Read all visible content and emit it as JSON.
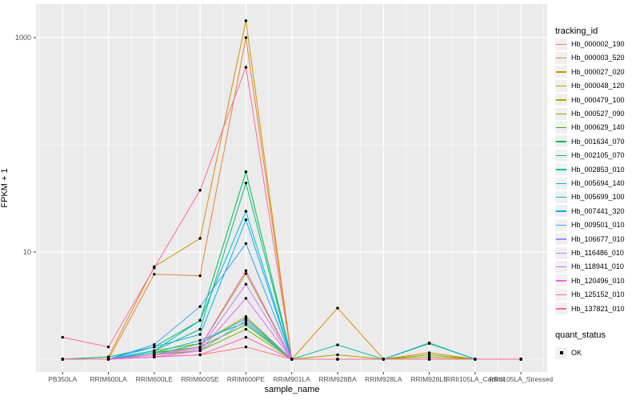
{
  "figure": {
    "background": "#FFFFFF",
    "panel_background": "#EBEBEB",
    "grid_color": "#FFFFFF",
    "tick_color": "#333333",
    "tick_label_color": "#4D4D4D",
    "axis_title_color": "#000000",
    "point_color": "#000000"
  },
  "chart_data": {
    "type": "line",
    "title": "",
    "xlabel": "sample_name",
    "ylabel": "FPKM + 1",
    "y_scale": "log10",
    "grid": true,
    "legend_position": "right",
    "y_ticks": [
      {
        "label": "1000",
        "value": 1000
      },
      {
        "label": "10",
        "value": 10
      }
    ],
    "y_minor_values": [
      100,
      1
    ],
    "categories": [
      "PB350LA",
      "RRIM600LA",
      "RRIM600LE",
      "RRIM600SE",
      "RRIM600PE",
      "RRIM901LA",
      "RRIM928BA",
      "RRIM928LA",
      "RRIM928LE",
      "RRII105LA_Control",
      "RRII105LA_Stressed"
    ],
    "series": [
      {
        "name": "Hb_000002_190",
        "color": "#F8766D",
        "values": [
          1,
          1,
          1.05,
          1.1,
          1.3,
          1,
          1,
          1,
          1,
          1,
          1
        ]
      },
      {
        "name": "Hb_000003_520",
        "color": "#EA8331",
        "values": [
          1,
          1,
          6.2,
          6,
          1000,
          1,
          1,
          1,
          1,
          1,
          1
        ]
      },
      {
        "name": "Hb_000027_020",
        "color": "#D89000",
        "values": [
          1,
          1.05,
          7.3,
          13.4,
          1435,
          1,
          3.0,
          1,
          1.15,
          1,
          1
        ]
      },
      {
        "name": "Hb_000048_120",
        "color": "#C09B00",
        "values": [
          1,
          1,
          1.2,
          1.4,
          2.5,
          1,
          1,
          1,
          1,
          1,
          1
        ]
      },
      {
        "name": "Hb_000479_100",
        "color": "#A3A500",
        "values": [
          1,
          1,
          1.15,
          1.3,
          6.3,
          1,
          1.1,
          1,
          1.05,
          1,
          1
        ]
      },
      {
        "name": "Hb_000527_090",
        "color": "#7CAE00",
        "values": [
          1,
          1,
          1.1,
          1.2,
          1.9,
          1,
          1,
          1,
          1.1,
          1,
          1
        ]
      },
      {
        "name": "Hb_000629_140",
        "color": "#39B600",
        "values": [
          1,
          1,
          1.15,
          1.3,
          2.1,
          1,
          1,
          1,
          1.4,
          1,
          1
        ]
      },
      {
        "name": "Hb_001634_070",
        "color": "#00BB4E",
        "values": [
          1,
          1.05,
          1.3,
          2.3,
          56,
          1,
          1,
          1,
          1,
          1,
          1
        ]
      },
      {
        "name": "Hb_002105_070",
        "color": "#00BF7D",
        "values": [
          1,
          1,
          1.2,
          1.9,
          44,
          1,
          1,
          1,
          1,
          1,
          1
        ]
      },
      {
        "name": "Hb_002853_010",
        "color": "#00C1A3",
        "values": [
          1,
          1,
          1.1,
          1.4,
          2.4,
          1,
          1.36,
          1,
          1,
          1,
          1
        ]
      },
      {
        "name": "Hb_005694_140",
        "color": "#00BFC4",
        "values": [
          1,
          1,
          1.15,
          1.5,
          2.2,
          1,
          1,
          1,
          1,
          1,
          1
        ]
      },
      {
        "name": "Hb_005699_100",
        "color": "#00BAE0",
        "values": [
          1,
          1,
          1.2,
          2.3,
          24,
          1,
          1,
          1,
          1,
          1,
          1
        ]
      },
      {
        "name": "Hb_007441_320",
        "color": "#00B0F6",
        "values": [
          1,
          1,
          1.3,
          1.7,
          20,
          1,
          1,
          1,
          1.42,
          1,
          1
        ]
      },
      {
        "name": "Hb_009501_010",
        "color": "#35A2FF",
        "values": [
          1,
          1,
          1.37,
          3.1,
          12,
          1,
          1,
          1,
          1,
          1,
          1
        ]
      },
      {
        "name": "Hb_106677_010",
        "color": "#9590FF",
        "values": [
          1,
          1,
          1.05,
          1.2,
          2.3,
          1,
          1,
          1,
          1,
          1,
          1
        ]
      },
      {
        "name": "Hb_116486_010",
        "color": "#C77CFF",
        "values": [
          1,
          1,
          1.1,
          1.25,
          5.0,
          1,
          1,
          1,
          1,
          1,
          1
        ]
      },
      {
        "name": "Hb_118941_010",
        "color": "#E76BF3",
        "values": [
          1,
          1,
          1.05,
          1.2,
          3.7,
          1,
          1,
          1,
          1,
          1,
          1
        ]
      },
      {
        "name": "Hb_120496_010",
        "color": "#FA62DB",
        "values": [
          1,
          1,
          1.1,
          1.3,
          6.7,
          1,
          1,
          1,
          1,
          1,
          1
        ]
      },
      {
        "name": "Hb_125152_010",
        "color": "#FF62BC",
        "values": [
          1,
          1,
          1.05,
          1.1,
          1.6,
          1,
          1,
          1,
          1,
          1,
          1
        ]
      },
      {
        "name": "Hb_137821_010",
        "color": "#FF6A98",
        "values": [
          1.6,
          1.3,
          7.1,
          37.7,
          529,
          1,
          1,
          1,
          1,
          1,
          1
        ]
      }
    ],
    "legend": {
      "tracking_title": "tracking_id",
      "quant_title": "quant_status",
      "quant_items": [
        "OK"
      ]
    }
  }
}
